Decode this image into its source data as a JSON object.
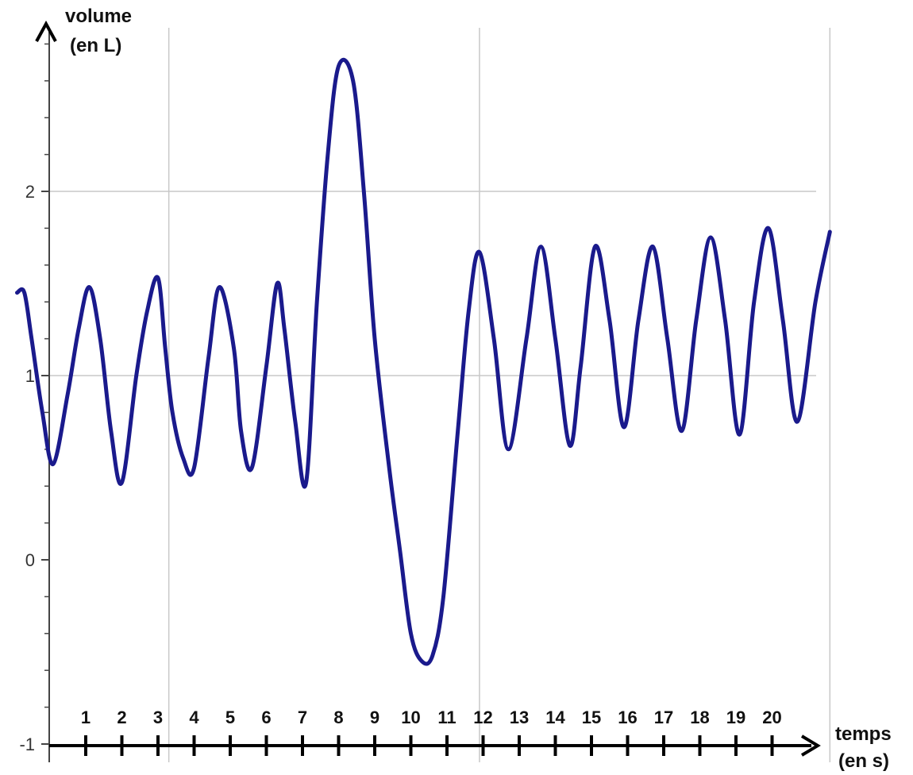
{
  "chart_data": {
    "type": "line",
    "title": "",
    "ylabel_line1": "volume",
    "ylabel_line2": "(en L)",
    "xlabel_line1": "temps",
    "xlabel_line2": "(en s)",
    "ylim": [
      -1,
      2.85
    ],
    "xlim": [
      -0.9,
      21.6
    ],
    "y_ticks": [
      -1,
      0,
      1,
      2
    ],
    "y_tick_labels": [
      "-1",
      "0",
      "1",
      "2"
    ],
    "x_ticks": [
      1,
      2,
      3,
      4,
      5,
      6,
      7,
      8,
      9,
      10,
      11,
      12,
      13,
      14,
      15,
      16,
      17,
      18,
      19,
      20
    ],
    "x_tick_labels": [
      "1",
      "2",
      "3",
      "4",
      "5",
      "6",
      "7",
      "8",
      "9",
      "10",
      "11",
      "12",
      "13",
      "14",
      "15",
      "16",
      "17",
      "18",
      "19",
      "20"
    ],
    "grid": {
      "horizontal": [
        1,
        2
      ],
      "vertical": [
        3.3,
        11.9,
        21.6
      ]
    },
    "series": [
      {
        "color": "#1a1a8c",
        "x": [
          -0.9,
          -0.7,
          -0.5,
          -0.2,
          0.1,
          0.5,
          0.8,
          1.1,
          1.4,
          1.7,
          2.0,
          2.4,
          2.7,
          3.0,
          3.2,
          3.4,
          3.7,
          4.0,
          4.4,
          4.7,
          5.1,
          5.3,
          5.6,
          6.0,
          6.3,
          6.5,
          6.8,
          7.1,
          7.4,
          7.7,
          8.0,
          8.4,
          8.7,
          9.0,
          9.4,
          9.7,
          10.0,
          10.3,
          10.6,
          10.9,
          11.3,
          11.6,
          11.9,
          12.3,
          12.7,
          13.2,
          13.6,
          14.0,
          14.4,
          14.7,
          15.1,
          15.5,
          15.9,
          16.3,
          16.7,
          17.1,
          17.5,
          17.9,
          18.3,
          18.7,
          19.1,
          19.5,
          19.9,
          20.3,
          20.7,
          21.2,
          21.6
        ],
        "y": [
          1.45,
          1.45,
          1.2,
          0.8,
          0.52,
          0.9,
          1.25,
          1.48,
          1.2,
          0.7,
          0.42,
          1.0,
          1.35,
          1.53,
          1.15,
          0.8,
          0.55,
          0.5,
          1.1,
          1.48,
          1.15,
          0.7,
          0.5,
          1.05,
          1.5,
          1.25,
          0.75,
          0.42,
          1.4,
          2.2,
          2.68,
          2.6,
          2.0,
          1.2,
          0.5,
          0.05,
          -0.4,
          -0.55,
          -0.52,
          -0.2,
          0.7,
          1.35,
          1.67,
          1.2,
          0.6,
          1.2,
          1.7,
          1.2,
          0.62,
          1.05,
          1.7,
          1.3,
          0.72,
          1.3,
          1.7,
          1.2,
          0.7,
          1.3,
          1.75,
          1.3,
          0.68,
          1.4,
          1.8,
          1.3,
          0.75,
          1.4,
          1.78
        ]
      }
    ]
  }
}
